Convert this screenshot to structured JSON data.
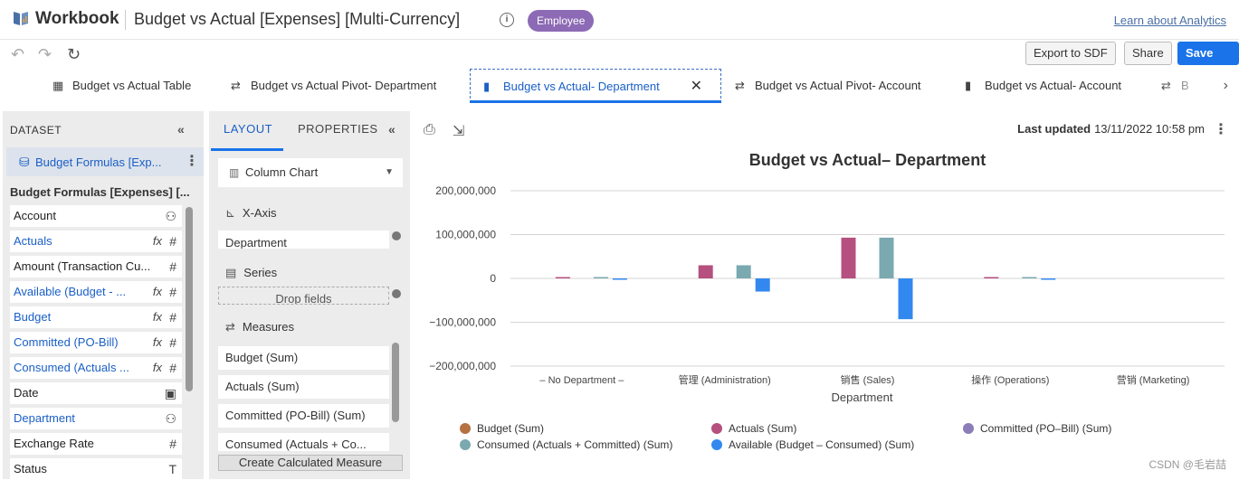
{
  "header": {
    "brand": "Workbook",
    "title": "Budget vs Actual [Expenses] [Multi-Currency]",
    "badge": "Employee",
    "learn_link": "Learn about Analytics",
    "info_glyph": "i"
  },
  "toolbar": {
    "export_label": "Export to SDF",
    "share_label": "Share",
    "save_as_label": "Save As",
    "undo_glyph": "↶",
    "redo_glyph": "↷",
    "refresh_glyph": "↻"
  },
  "tabs": [
    {
      "label": "Budget vs Actual Table",
      "icon": "table-icon",
      "glyph": "▦"
    },
    {
      "label": "Budget vs Actual Pivot- Department",
      "icon": "pivot-icon",
      "glyph": "⇄"
    },
    {
      "label": "Budget vs Actual- Department",
      "icon": "bar-chart-icon",
      "glyph": "▮"
    },
    {
      "label": "Budget vs Actual Pivot- Account",
      "icon": "pivot-icon",
      "glyph": "⇄"
    },
    {
      "label": "Budget vs Actual- Account",
      "icon": "bar-chart-icon",
      "glyph": "▮"
    },
    {
      "label": "B",
      "icon": "pivot-icon",
      "glyph": "⇄"
    }
  ],
  "tab_close": "✕",
  "tab_next": "›",
  "dataset": {
    "heading": "DATASET",
    "collapse_glyph": "«",
    "name": "Budget Formulas [Exp...",
    "fields_heading": "Budget Formulas [Expenses] [...",
    "fields": [
      {
        "label": "Account",
        "blue": false,
        "icon": "⚇",
        "formula": ""
      },
      {
        "label": "Actuals",
        "blue": true,
        "icon": "#",
        "formula": "fx"
      },
      {
        "label": "Amount (Transaction Cu...",
        "blue": false,
        "icon": "#",
        "formula": ""
      },
      {
        "label": "Available (Budget - ...",
        "blue": true,
        "icon": "#",
        "formula": "fx"
      },
      {
        "label": "Budget",
        "blue": true,
        "icon": "#",
        "formula": "fx"
      },
      {
        "label": "Committed (PO-Bill)",
        "blue": true,
        "icon": "#",
        "formula": "fx"
      },
      {
        "label": "Consumed (Actuals ...",
        "blue": true,
        "icon": "#",
        "formula": "fx"
      },
      {
        "label": "Date",
        "blue": false,
        "icon": "▣",
        "formula": ""
      },
      {
        "label": "Department",
        "blue": true,
        "icon": "⚇",
        "formula": ""
      },
      {
        "label": "Exchange Rate",
        "blue": false,
        "icon": "#",
        "formula": ""
      },
      {
        "label": "Status",
        "blue": false,
        "icon": "T",
        "formula": ""
      }
    ]
  },
  "layout_panel": {
    "tab_layout": "LAYOUT",
    "tab_properties": "PROPERTIES",
    "chart_type": "Column Chart",
    "x_axis_label": "X-Axis",
    "x_axis_value": "Department",
    "series_label": "Series",
    "series_drop": "Drop fields",
    "measures_label": "Measures",
    "measures": [
      "Budget  (Sum)",
      "Actuals  (Sum)",
      "Committed (PO-Bill)  (Sum)",
      "Consumed (Actuals + Co..."
    ],
    "calc_button": "Create Calculated Measure"
  },
  "main": {
    "last_updated_label": "Last updated",
    "last_updated_value": "13/11/2022 10:58 pm"
  },
  "watermark": "CSDN @毛岩喆",
  "colors": {
    "budget": "#b5713f",
    "actuals": "#b5507f",
    "committed": "#8a7db8",
    "consumed": "#7aa9b0",
    "available": "#3388f0"
  },
  "chart_data": {
    "type": "bar",
    "title": "Budget vs Actual– Department",
    "xlabel": "Department",
    "ylabel": "",
    "ylim": [
      -200000000,
      200000000
    ],
    "yticks": [
      "200,000,000",
      "100,000,000",
      "0",
      "−100,000,000",
      "−200,000,000"
    ],
    "ytick_values": [
      200000000,
      100000000,
      0,
      -100000000,
      -200000000
    ],
    "categories": [
      "– No Department –",
      "管理 (Administration)",
      "销售 (Sales)",
      "操作 (Operations)",
      "营销 (Marketing)"
    ],
    "series": [
      {
        "name": "Budget (Sum)",
        "color": "#b5713f",
        "values": [
          0,
          0,
          0,
          0,
          0
        ]
      },
      {
        "name": "Actuals (Sum)",
        "color": "#b5507f",
        "values": [
          2000000,
          30000000,
          93000000,
          2000000,
          0
        ]
      },
      {
        "name": "Committed (PO–Bill) (Sum)",
        "color": "#8a7db8",
        "values": [
          0,
          0,
          0,
          0,
          0
        ]
      },
      {
        "name": "Consumed (Actuals + Committed) (Sum)",
        "color": "#7aa9b0",
        "values": [
          2000000,
          30000000,
          93000000,
          2000000,
          0
        ]
      },
      {
        "name": "Available (Budget – Consumed) (Sum)",
        "color": "#3388f0",
        "values": [
          -2000000,
          -30000000,
          -93000000,
          -2000000,
          0
        ]
      }
    ],
    "legend": "bottom"
  }
}
